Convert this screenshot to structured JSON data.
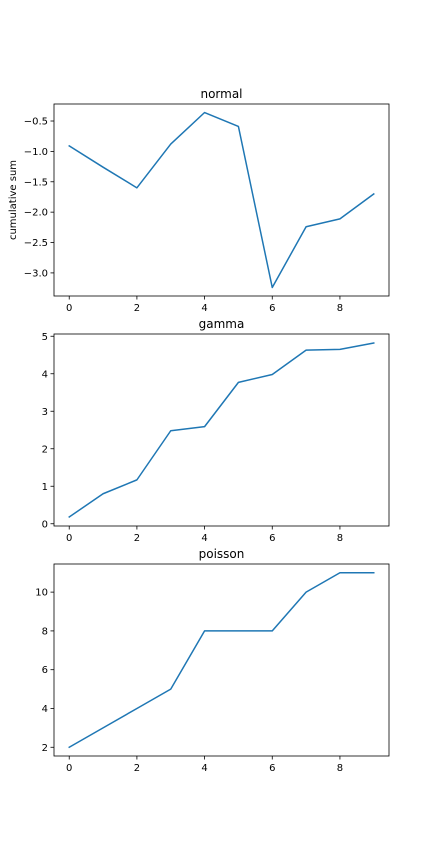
{
  "colors": {
    "line": "#1f77b4",
    "axes": "#000000",
    "background": "#ffffff"
  },
  "chart_data": [
    {
      "type": "line",
      "title": "normal",
      "xlabel": "",
      "ylabel": "cumulative sum",
      "grid": false,
      "x": [
        0,
        1,
        2,
        3,
        4,
        5,
        6,
        7,
        8,
        9
      ],
      "series": [
        {
          "values": [
            -0.91,
            -1.26,
            -1.6,
            -0.88,
            -0.36,
            -0.59,
            -3.24,
            -2.24,
            -2.11,
            -1.7
          ]
        }
      ],
      "xlim": [
        -0.45,
        9.45
      ],
      "ylim": [
        -3.38,
        -0.22
      ],
      "xticks": [
        0,
        2,
        4,
        6,
        8
      ],
      "xtick_labels": [
        "0",
        "2",
        "4",
        "6",
        "8"
      ],
      "yticks": [
        -0.5,
        -1.0,
        -1.5,
        -2.0,
        -2.5,
        -3.0
      ],
      "ytick_labels": [
        "−0.5",
        "−1.0",
        "−1.5",
        "−2.0",
        "−2.5",
        "−3.0"
      ]
    },
    {
      "type": "line",
      "title": "gamma",
      "xlabel": "",
      "ylabel": "",
      "grid": false,
      "x": [
        0,
        1,
        2,
        3,
        4,
        5,
        6,
        7,
        8,
        9
      ],
      "series": [
        {
          "values": [
            0.18,
            0.8,
            1.17,
            2.48,
            2.59,
            3.77,
            3.98,
            4.63,
            4.65,
            4.82
          ]
        }
      ],
      "xlim": [
        -0.45,
        9.45
      ],
      "ylim": [
        -0.06,
        5.06
      ],
      "xticks": [
        0,
        2,
        4,
        6,
        8
      ],
      "xtick_labels": [
        "0",
        "2",
        "4",
        "6",
        "8"
      ],
      "yticks": [
        0,
        1,
        2,
        3,
        4,
        5
      ],
      "ytick_labels": [
        "0",
        "1",
        "2",
        "3",
        "4",
        "5"
      ]
    },
    {
      "type": "line",
      "title": "poisson",
      "xlabel": "",
      "ylabel": "",
      "grid": false,
      "x": [
        0,
        1,
        2,
        3,
        4,
        5,
        6,
        7,
        8,
        9
      ],
      "series": [
        {
          "values": [
            2,
            3,
            4,
            5,
            8,
            8,
            8,
            10,
            11,
            11
          ]
        }
      ],
      "xlim": [
        -0.45,
        9.45
      ],
      "ylim": [
        1.55,
        11.45
      ],
      "xticks": [
        0,
        2,
        4,
        6,
        8
      ],
      "xtick_labels": [
        "0",
        "2",
        "4",
        "6",
        "8"
      ],
      "yticks": [
        2,
        4,
        6,
        8,
        10
      ],
      "ytick_labels": [
        "2",
        "4",
        "6",
        "8",
        "10"
      ]
    }
  ]
}
